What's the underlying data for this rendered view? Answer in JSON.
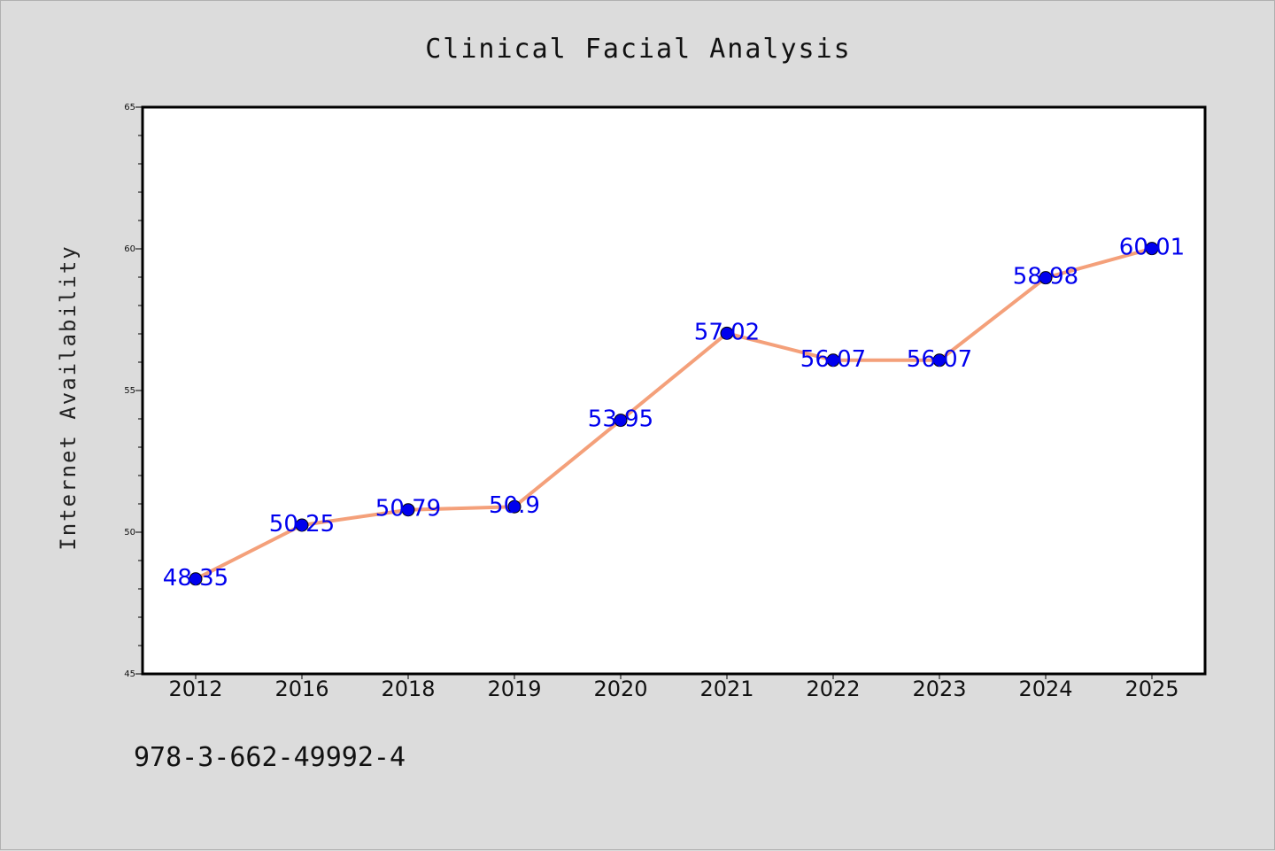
{
  "chart_data": {
    "type": "line",
    "title": "Clinical Facial Analysis",
    "ylabel": "Internet Availability",
    "xlabel": "",
    "categories": [
      "2012",
      "2016",
      "2018",
      "2019",
      "2020",
      "2021",
      "2022",
      "2023",
      "2024",
      "2025"
    ],
    "values": [
      48.35,
      50.25,
      50.79,
      50.9,
      53.95,
      57.02,
      56.07,
      56.07,
      58.98,
      60.01
    ],
    "data_labels": [
      "48.35",
      "50.25",
      "50.79",
      "50.9",
      "53.95",
      "57.02",
      "56.07",
      "56.07",
      "58.98",
      "60.01"
    ],
    "ylim": [
      45,
      65
    ],
    "yticks": [
      45,
      50,
      55,
      60,
      65
    ],
    "grid": false,
    "legend": "none",
    "line_color": "#f4a07a",
    "marker_color": "#0000ee",
    "label_color": "#0000ee"
  },
  "footer": {
    "isbn": "978-3-662-49992-4"
  }
}
